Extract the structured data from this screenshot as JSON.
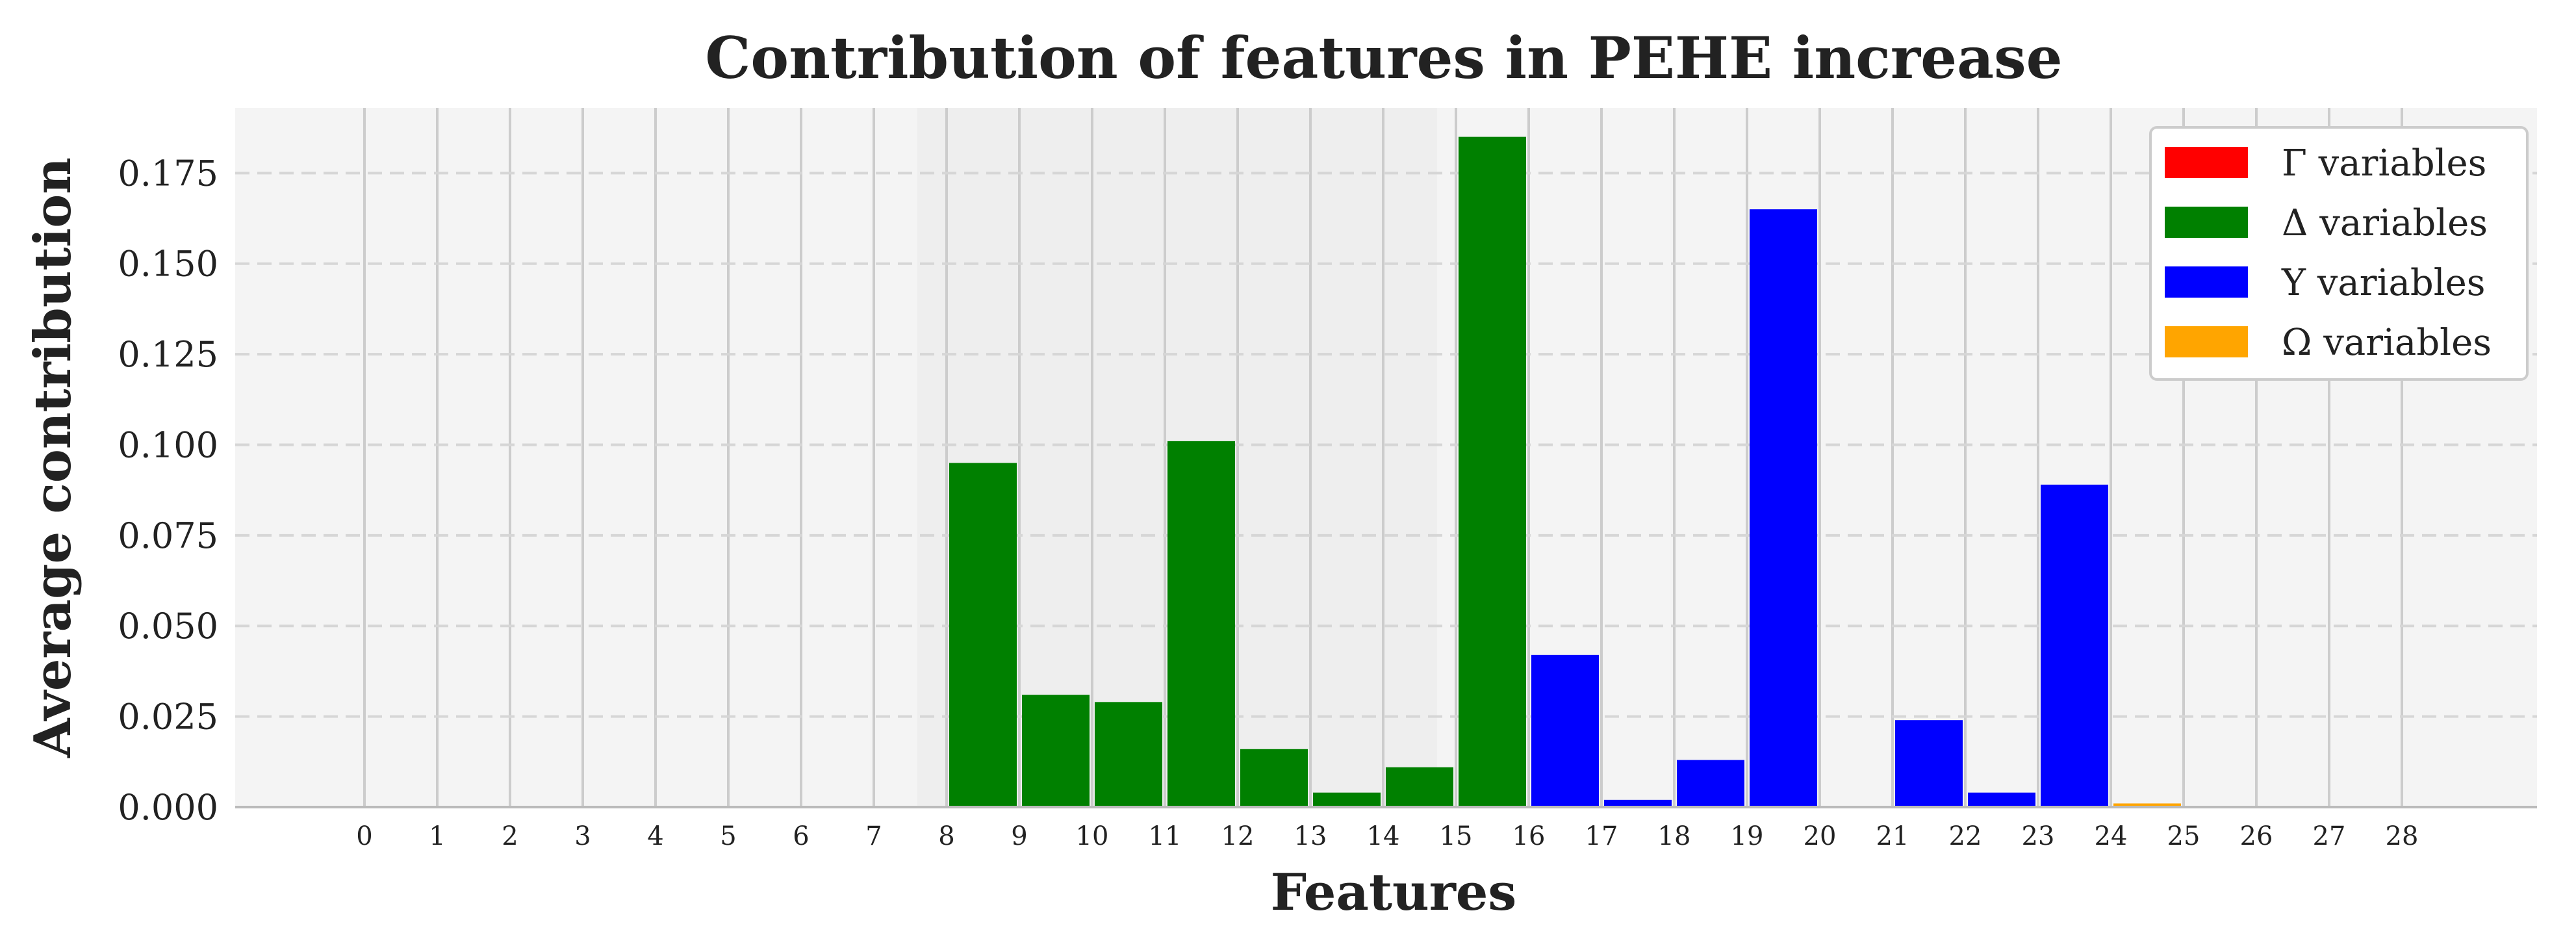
{
  "chart_data": {
    "type": "bar",
    "title": "Contribution of features in PEHE increase",
    "xlabel": "Features",
    "ylabel": "Average contribution",
    "categories": [
      "0",
      "1",
      "2",
      "3",
      "4",
      "5",
      "6",
      "7",
      "8",
      "9",
      "10",
      "11",
      "12",
      "13",
      "14",
      "15",
      "16",
      "17",
      "18",
      "19",
      "20",
      "21",
      "22",
      "23",
      "24",
      "25",
      "26",
      "27",
      "28"
    ],
    "values": [
      0,
      0,
      0,
      0,
      0,
      0,
      0,
      0,
      0.095,
      0.031,
      0.029,
      0.101,
      0.016,
      0.004,
      0.011,
      0.185,
      0.042,
      0.002,
      0.013,
      0.165,
      0,
      0.024,
      0.004,
      0.089,
      0.001,
      0,
      0,
      0,
      0
    ],
    "bar_groups": [
      "Γ",
      "Γ",
      "Γ",
      "Γ",
      "Γ",
      "Γ",
      "Γ",
      "Γ",
      "Δ",
      "Δ",
      "Δ",
      "Δ",
      "Δ",
      "Δ",
      "Δ",
      "Δ",
      "Υ",
      "Υ",
      "Υ",
      "Υ",
      "Υ",
      "Υ",
      "Υ",
      "Υ",
      "Ω",
      "Ω",
      "Ω",
      "Ω",
      "Ω"
    ],
    "legend": [
      {
        "key": "Γ",
        "label": "Γ variables",
        "color": "#ff0000"
      },
      {
        "key": "Δ",
        "label": "Δ variables",
        "color": "#008000"
      },
      {
        "key": "Υ",
        "label": "Υ variables",
        "color": "#0000ff"
      },
      {
        "key": "Ω",
        "label": "Ω variables",
        "color": "#ffa500"
      }
    ],
    "ylim": [
      0,
      0.193
    ],
    "yticks": [
      "0.000",
      "0.025",
      "0.050",
      "0.075",
      "0.100",
      "0.125",
      "0.150",
      "0.175"
    ],
    "grid": true,
    "legend_position": "top-right"
  }
}
